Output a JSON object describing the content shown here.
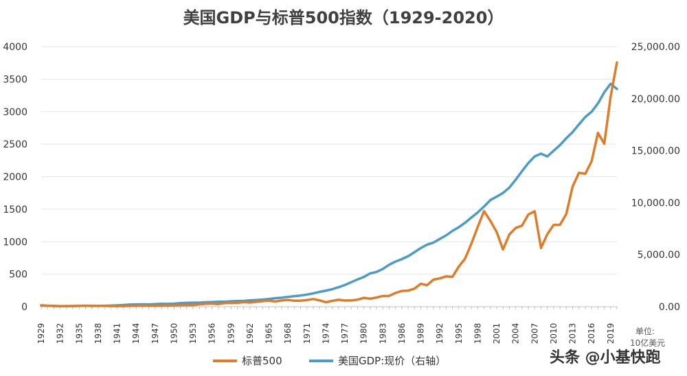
{
  "chart_data": {
    "type": "line",
    "title": "美国GDP与标普500指数（1929-2020）",
    "x": [
      1929,
      1930,
      1931,
      1932,
      1933,
      1934,
      1935,
      1936,
      1937,
      1938,
      1939,
      1940,
      1941,
      1942,
      1943,
      1944,
      1945,
      1946,
      1947,
      1948,
      1949,
      1950,
      1951,
      1952,
      1953,
      1954,
      1955,
      1956,
      1957,
      1958,
      1959,
      1960,
      1961,
      1962,
      1963,
      1964,
      1965,
      1966,
      1967,
      1968,
      1969,
      1970,
      1971,
      1972,
      1973,
      1974,
      1975,
      1976,
      1977,
      1978,
      1979,
      1980,
      1981,
      1982,
      1983,
      1984,
      1985,
      1986,
      1987,
      1988,
      1989,
      1990,
      1991,
      1992,
      1993,
      1994,
      1995,
      1996,
      1997,
      1998,
      1999,
      2000,
      2001,
      2002,
      2003,
      2004,
      2005,
      2006,
      2007,
      2008,
      2009,
      2010,
      2011,
      2012,
      2013,
      2014,
      2015,
      2016,
      2017,
      2018,
      2019,
      2020
    ],
    "x_ticks": [
      "1929",
      "1932",
      "1935",
      "1938",
      "1941",
      "1944",
      "1947",
      "1950",
      "1953",
      "1956",
      "1959",
      "1962",
      "1965",
      "1968",
      "1971",
      "1974",
      "1977",
      "1980",
      "1983",
      "1986",
      "1989",
      "1992",
      "1995",
      "1998",
      "2001",
      "2004",
      "2007",
      "2010",
      "2013",
      "2016",
      "2019"
    ],
    "left_axis": {
      "ticks": [
        "0",
        "500",
        "1000",
        "1500",
        "2000",
        "2500",
        "3000",
        "3500",
        "4000"
      ],
      "ylim": [
        0,
        4000
      ]
    },
    "right_axis": {
      "ticks": [
        "0.00",
        "5,000.00",
        "10,000.00",
        "15,000.00",
        "20,000.00",
        "25,000.00"
      ],
      "ylim": [
        0,
        25000
      ]
    },
    "series": [
      {
        "name": "标普500",
        "axis": "left",
        "color": "#e07b28",
        "values": [
          22,
          16,
          9,
          7,
          10,
          10,
          14,
          16,
          11,
          13,
          12,
          10,
          9,
          10,
          12,
          13,
          16,
          15,
          15,
          15,
          17,
          20,
          24,
          26,
          25,
          36,
          45,
          47,
          40,
          55,
          59,
          58,
          71,
          63,
          75,
          85,
          92,
          80,
          96,
          104,
          92,
          92,
          102,
          118,
          97,
          69,
          90,
          107,
          95,
          96,
          108,
          136,
          122,
          141,
          165,
          167,
          211,
          242,
          247,
          278,
          353,
          330,
          417,
          436,
          466,
          459,
          616,
          741,
          970,
          1229,
          1469,
          1320,
          1148,
          880,
          1112,
          1212,
          1248,
          1418,
          1468,
          903,
          1116,
          1258,
          1258,
          1426,
          1848,
          2059,
          2044,
          2239,
          2674,
          2507,
          3231,
          3756
        ]
      },
      {
        "name": "美国GDP:现价（右轴）",
        "axis": "right",
        "color": "#4a9bc8",
        "values": [
          105,
          92,
          77,
          60,
          57,
          67,
          74,
          85,
          94,
          89,
          94,
          103,
          130,
          166,
          203,
          225,
          228,
          227,
          250,
          275,
          272,
          300,
          347,
          367,
          389,
          391,
          426,
          450,
          474,
          482,
          522,
          543,
          563,
          605,
          638,
          686,
          743,
          815,
          862,
          943,
          1019,
          1073,
          1165,
          1280,
          1425,
          1545,
          1685,
          1873,
          2082,
          2352,
          2627,
          2857,
          3207,
          3343,
          3634,
          4037,
          4339,
          4579,
          4855,
          5236,
          5641,
          5963,
          6158,
          6520,
          6858,
          7287,
          7640,
          8073,
          8578,
          9063,
          9631,
          10252,
          10582,
          10936,
          11458,
          12214,
          13037,
          13815,
          14452,
          14713,
          14449,
          14992,
          15543,
          16197,
          16785,
          17527,
          18238,
          18745,
          19543,
          20612,
          21433,
          20937
        ]
      }
    ],
    "legend": [
      "标普500",
      "美国GDP:现价（右轴）"
    ],
    "legend_position": "bottom"
  },
  "unit_label": [
    "单位:",
    "10亿美元"
  ],
  "watermark": "头条 @小基快跑"
}
